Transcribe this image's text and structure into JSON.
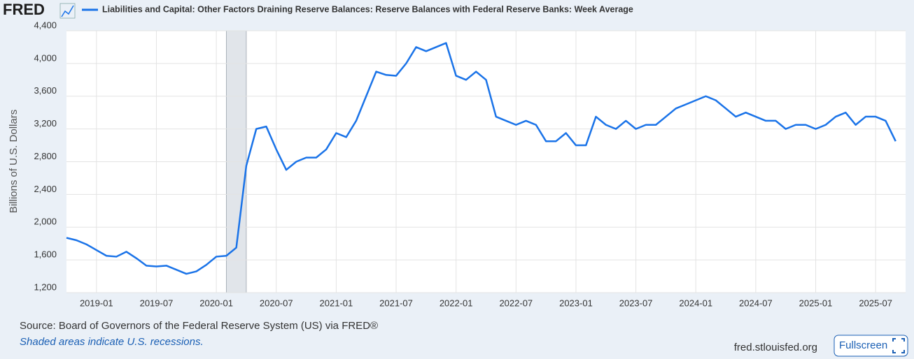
{
  "brand": "FRED",
  "chart_data": {
    "type": "line",
    "x": [
      "2018-10",
      "2018-11",
      "2018-12",
      "2019-01",
      "2019-02",
      "2019-03",
      "2019-04",
      "2019-05",
      "2019-06",
      "2019-07",
      "2019-08",
      "2019-09",
      "2019-10",
      "2019-11",
      "2019-12",
      "2020-01",
      "2020-02",
      "2020-03",
      "2020-04",
      "2020-05",
      "2020-06",
      "2020-07",
      "2020-08",
      "2020-09",
      "2020-10",
      "2020-11",
      "2020-12",
      "2021-01",
      "2021-02",
      "2021-03",
      "2021-04",
      "2021-05",
      "2021-06",
      "2021-07",
      "2021-08",
      "2021-09",
      "2021-10",
      "2021-11",
      "2021-12",
      "2022-01",
      "2022-02",
      "2022-03",
      "2022-04",
      "2022-05",
      "2022-06",
      "2022-07",
      "2022-08",
      "2022-09",
      "2022-10",
      "2022-11",
      "2022-12",
      "2023-01",
      "2023-02",
      "2023-03",
      "2023-04",
      "2023-05",
      "2023-06",
      "2023-07",
      "2023-08",
      "2023-09",
      "2023-10",
      "2023-11",
      "2023-12",
      "2024-01",
      "2024-02",
      "2024-03",
      "2024-04",
      "2024-05",
      "2024-06",
      "2024-07",
      "2024-08",
      "2024-09",
      "2024-10",
      "2024-11",
      "2024-12",
      "2025-01",
      "2025-02",
      "2025-03",
      "2025-04",
      "2025-05",
      "2025-06",
      "2025-07",
      "2025-08",
      "2025-09"
    ],
    "series": [
      {
        "name": "Liabilities and Capital: Other Factors Draining Reserve Balances: Reserve Balances with Federal Reserve Banks: Week Average",
        "color": "#1a73e8",
        "values": [
          1870,
          1840,
          1790,
          1720,
          1650,
          1640,
          1700,
          1620,
          1530,
          1520,
          1530,
          1480,
          1430,
          1460,
          1540,
          1640,
          1650,
          1750,
          2750,
          3200,
          3230,
          2950,
          2700,
          2800,
          2850,
          2850,
          2950,
          3150,
          3100,
          3300,
          3600,
          3900,
          3860,
          3850,
          4000,
          4200,
          4150,
          4200,
          4250,
          3850,
          3800,
          3900,
          3800,
          3350,
          3300,
          3250,
          3300,
          3250,
          3050,
          3050,
          3150,
          3000,
          3000,
          3350,
          3250,
          3200,
          3300,
          3200,
          3250,
          3250,
          3350,
          3450,
          3500,
          3550,
          3600,
          3550,
          3450,
          3350,
          3400,
          3350,
          3300,
          3300,
          3200,
          3250,
          3250,
          3200,
          3250,
          3350,
          3400,
          3250,
          3350,
          3350,
          3300,
          3050
        ]
      }
    ],
    "y_label": "Billions of U.S. Dollars",
    "xlim": [
      "2018-10",
      "2025-10"
    ],
    "xticks": [
      "2019-01",
      "2019-07",
      "2020-01",
      "2020-07",
      "2021-01",
      "2021-07",
      "2022-01",
      "2022-07",
      "2023-01",
      "2023-07",
      "2024-01",
      "2024-07",
      "2025-01",
      "2025-07"
    ],
    "ylim": [
      1200,
      4400
    ],
    "yticks": [
      {
        "value": 1200,
        "label": "1,200"
      },
      {
        "value": 1600,
        "label": "1,600"
      },
      {
        "value": 2000,
        "label": "2,000"
      },
      {
        "value": 2400,
        "label": "2,400"
      },
      {
        "value": 2800,
        "label": "2,800"
      },
      {
        "value": 3200,
        "label": "3,200"
      },
      {
        "value": 3600,
        "label": "3,600"
      },
      {
        "value": 4000,
        "label": "4,000"
      },
      {
        "value": 4400,
        "label": "4,400"
      }
    ],
    "grid": true,
    "recessions": [
      [
        "2020-02",
        "2020-04"
      ]
    ]
  },
  "footer": {
    "source": "Source: Board of Governors of the Federal Reserve System (US) via FRED®",
    "note": "Shaded areas indicate U.S. recessions.",
    "site": "fred.stlouisfed.org"
  },
  "fullscreen_button": "Fullscreen"
}
